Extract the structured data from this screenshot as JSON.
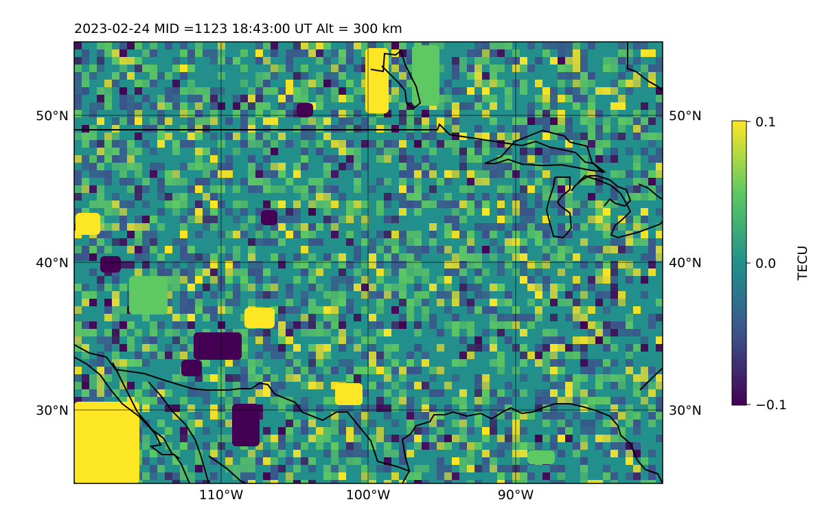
{
  "figure": {
    "title": "2023-02-24  MID =1123    18:43:00  UT  Alt = 300 km"
  },
  "map": {
    "projection": "plate-carree",
    "lon_range": [
      -120,
      -80
    ],
    "lat_range": [
      25,
      55
    ],
    "lat_ticks": [
      {
        "value": 50,
        "label": "50°N"
      },
      {
        "value": 40,
        "label": "40°N"
      },
      {
        "value": 30,
        "label": "30°N"
      }
    ],
    "lon_ticks": [
      {
        "value": -110,
        "label": "110°W"
      },
      {
        "value": -100,
        "label": "100°W"
      },
      {
        "value": -90,
        "label": "90°W"
      }
    ],
    "gridlines": true,
    "coastlines": true,
    "field": "TEC anomaly (gridded, viridis)"
  },
  "colorbar": {
    "label": "TECU",
    "min": -0.1,
    "max": 0.1,
    "ticks": [
      {
        "value": 0.1,
        "label": "0.1"
      },
      {
        "value": 0.0,
        "label": "0.0"
      },
      {
        "value": -0.1,
        "label": "−0.1"
      }
    ],
    "colormap": "viridis",
    "colors": [
      "#440154",
      "#3b528b",
      "#21918c",
      "#5ec962",
      "#fde725"
    ]
  }
}
